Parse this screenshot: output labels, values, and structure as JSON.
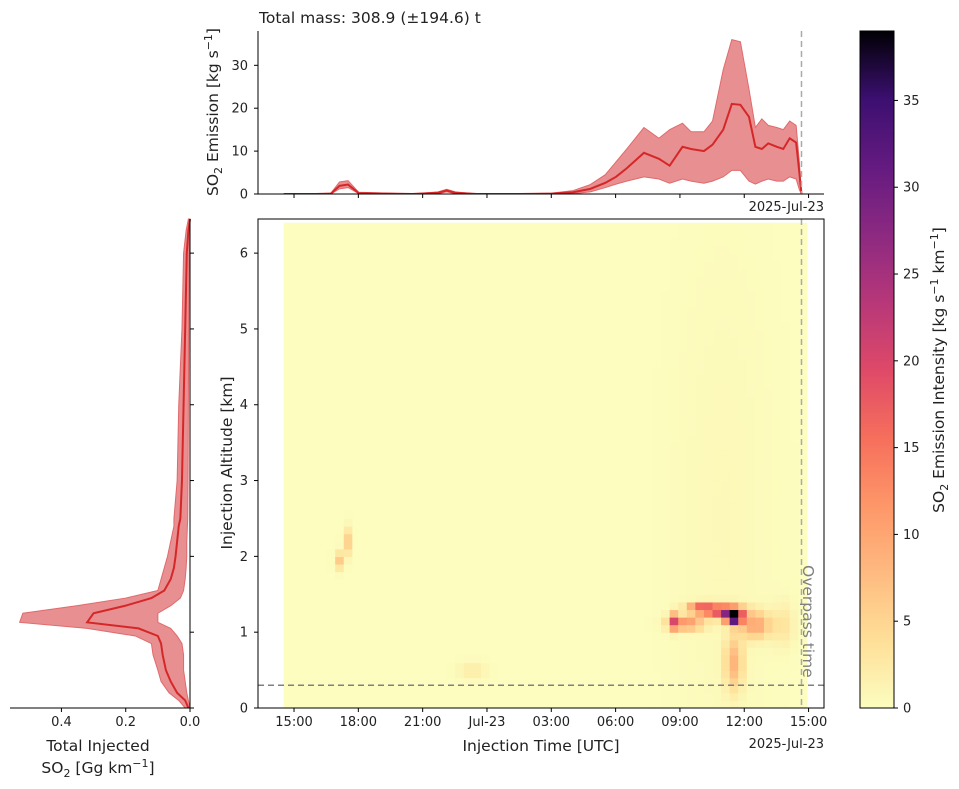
{
  "chart_data": [
    {
      "type": "area",
      "panel": "top",
      "title": "Total mass: 308.9 (±194.6) t",
      "ylabel_main": "SO",
      "ylabel_sub": "2",
      "ylabel_rest": " Emission [kg s",
      "ylabel_sup": "−1",
      "ylabel_end": "]",
      "ylim": [
        0,
        38
      ],
      "yticks": [
        "0",
        "10",
        "20",
        "30"
      ],
      "ytick_values": [
        0,
        10,
        20,
        30
      ],
      "date_label": "2025-Jul-23",
      "x": [
        0.0,
        1.5,
        2.2,
        2.6,
        3.0,
        3.5,
        6.0,
        7.2,
        7.6,
        8.0,
        9.0,
        11.0,
        12.5,
        13.5,
        14.3,
        15.0,
        15.5,
        16.0,
        16.8,
        17.5,
        18.0,
        18.6,
        19.0,
        19.6,
        20.0,
        20.5,
        20.9,
        21.3,
        21.7,
        22.0,
        22.3,
        22.6,
        23.0,
        23.3,
        23.6,
        23.9,
        24.05,
        24.15
      ],
      "y_mean": [
        0,
        0,
        0.1,
        1.9,
        2.2,
        0.2,
        0,
        0.3,
        0.8,
        0.3,
        0,
        0,
        0.1,
        0.4,
        1.2,
        2.6,
        4.0,
        6.0,
        9.6,
        8.2,
        6.6,
        11.0,
        10.5,
        10.0,
        11.5,
        15.0,
        21.0,
        20.8,
        18.0,
        11.0,
        10.5,
        11.8,
        11.0,
        10.5,
        13.0,
        12.0,
        5.0,
        0
      ],
      "y_low": [
        0,
        0,
        0,
        1.2,
        1.5,
        0.1,
        0,
        0.1,
        0.5,
        0.1,
        0,
        0,
        0,
        0.1,
        0.5,
        1.5,
        2.3,
        3.0,
        4.0,
        3.5,
        2.5,
        3.5,
        3.0,
        2.5,
        3.0,
        4.0,
        5.5,
        5.5,
        3.0,
        2.3,
        3.0,
        3.5,
        3.0,
        3.0,
        4.0,
        3.5,
        1.0,
        0
      ],
      "y_high": [
        0,
        0,
        0.2,
        2.8,
        3.1,
        0.4,
        0,
        0.5,
        1.1,
        0.5,
        0,
        0,
        0.2,
        0.8,
        2.2,
        4.5,
        7.5,
        10.5,
        15.5,
        13.0,
        15.0,
        16.5,
        14.5,
        14.5,
        17.0,
        29.0,
        36.0,
        35.5,
        24.5,
        15.5,
        17.5,
        16.0,
        15.5,
        15.0,
        17.0,
        16.0,
        7.5,
        0
      ]
    },
    {
      "type": "heatmap",
      "panel": "main",
      "xlabel": "Injection Time [UTC]",
      "ylabel": "Injection Altitude [km]",
      "xticks": [
        "15:00",
        "18:00",
        "21:00",
        "Jul-23",
        "03:00",
        "06:00",
        "09:00",
        "12:00",
        "15:00"
      ],
      "xtick_hours": [
        0.48,
        3.48,
        6.48,
        9.48,
        12.48,
        15.48,
        18.48,
        21.48,
        24.48
      ],
      "xlim_hours": [
        -1.2,
        25.2
      ],
      "date_label": "2025-Jul-23",
      "yticks": [
        "0",
        "1",
        "2",
        "3",
        "4",
        "5",
        "6"
      ],
      "ytick_values": [
        0,
        1,
        2,
        3,
        4,
        5,
        6
      ],
      "ylim": [
        0,
        6.45
      ],
      "data_x_range_hours": [
        0,
        24.2
      ],
      "data_y_range": [
        0,
        6.4
      ],
      "overpass_hours": 24.15,
      "overpass_label": "Overpass time",
      "horizontal_line_km": 0.3,
      "blobs": [
        {
          "t": 2.6,
          "z": 1.95,
          "st": 0.15,
          "sz": 0.08,
          "amp": 6
        },
        {
          "t": 2.95,
          "z": 2.2,
          "st": 0.12,
          "sz": 0.12,
          "amp": 6
        },
        {
          "t": 8.8,
          "z": 0.5,
          "st": 0.45,
          "sz": 0.07,
          "amp": 2.5
        },
        {
          "t": 18.2,
          "z": 1.15,
          "st": 0.18,
          "sz": 0.08,
          "amp": 14
        },
        {
          "t": 19.5,
          "z": 1.32,
          "st": 0.45,
          "sz": 0.05,
          "amp": 18
        },
        {
          "t": 20.6,
          "z": 1.28,
          "st": 0.55,
          "sz": 0.06,
          "amp": 22
        },
        {
          "t": 21.0,
          "z": 1.2,
          "st": 0.25,
          "sz": 0.06,
          "amp": 39
        },
        {
          "t": 18.8,
          "z": 1.12,
          "st": 0.55,
          "sz": 0.06,
          "amp": 12
        },
        {
          "t": 21.0,
          "z": 0.6,
          "st": 0.3,
          "sz": 0.25,
          "amp": 8
        },
        {
          "t": 22.0,
          "z": 1.1,
          "st": 0.5,
          "sz": 0.12,
          "amp": 10
        },
        {
          "t": 23.3,
          "z": 1.1,
          "st": 0.35,
          "sz": 0.2,
          "amp": 3
        },
        {
          "t": 20.5,
          "z": 2.5,
          "st": 1.6,
          "sz": 2.4,
          "amp": 0.6
        }
      ]
    },
    {
      "type": "area",
      "panel": "left",
      "xlabel_line1": "Total Injected",
      "xlabel_line2_main": "SO",
      "xlabel_line2_sub": "2",
      "xlabel_line2_rest": " [Gg km",
      "xlabel_line2_sup": "−1",
      "xlabel_line2_end": "]",
      "xticks": [
        "0.4",
        "0.2",
        "0.0"
      ],
      "xtick_values": [
        0.4,
        0.2,
        0.0
      ],
      "xlim": [
        0.56,
        0.0
      ],
      "z": [
        0.0,
        0.1,
        0.2,
        0.35,
        0.5,
        0.7,
        0.85,
        0.95,
        1.05,
        1.13,
        1.25,
        1.35,
        1.45,
        1.55,
        1.7,
        1.85,
        2.0,
        2.2,
        2.4,
        2.5,
        3.0,
        4.0,
        5.0,
        6.0,
        6.3,
        6.45
      ],
      "mean": [
        0.005,
        0.015,
        0.04,
        0.06,
        0.075,
        0.085,
        0.09,
        0.1,
        0.16,
        0.32,
        0.3,
        0.2,
        0.12,
        0.08,
        0.06,
        0.05,
        0.045,
        0.04,
        0.035,
        0.03,
        0.025,
        0.02,
        0.015,
        0.01,
        0.005,
        0.0
      ],
      "low": [
        0.0,
        0.005,
        0.01,
        0.015,
        0.02,
        0.02,
        0.025,
        0.04,
        0.06,
        0.1,
        0.1,
        0.06,
        0.03,
        0.02,
        0.015,
        0.012,
        0.01,
        0.01,
        0.008,
        0.007,
        0.006,
        0.005,
        0.004,
        0.003,
        0.002,
        0.0
      ],
      "high": [
        0.015,
        0.035,
        0.065,
        0.09,
        0.1,
        0.115,
        0.12,
        0.17,
        0.32,
        0.53,
        0.52,
        0.35,
        0.2,
        0.1,
        0.09,
        0.08,
        0.07,
        0.06,
        0.05,
        0.05,
        0.04,
        0.035,
        0.025,
        0.02,
        0.012,
        0.005
      ]
    },
    {
      "type": "colorbar",
      "panel": "colorbar",
      "label_main": "SO",
      "label_sub": "2",
      "label_rest": " Emission Intensity [kg s",
      "label_sup1": "−1",
      "label_mid": " km",
      "label_sup2": "−1",
      "label_end": "]",
      "range": [
        0,
        39
      ],
      "ticks": [
        "0",
        "5",
        "10",
        "15",
        "20",
        "25",
        "30",
        "35"
      ],
      "tick_values": [
        0,
        5,
        10,
        15,
        20,
        25,
        30,
        35
      ],
      "colormap": "magma_r"
    }
  ],
  "colors": {
    "line": "#d62728",
    "band": "#e06a6c",
    "dashed_line": "#808080"
  }
}
